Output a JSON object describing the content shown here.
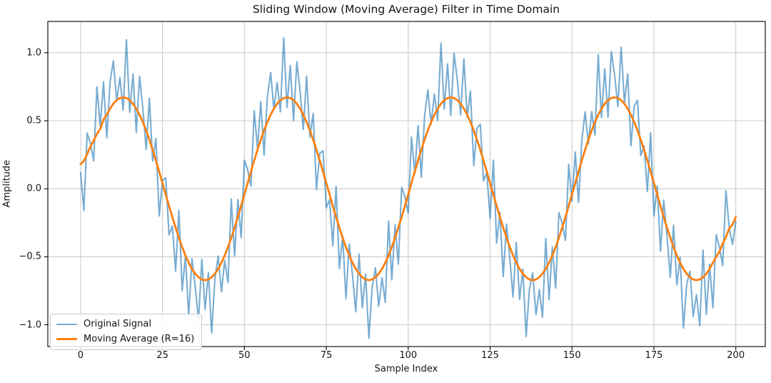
{
  "chart_data": {
    "type": "line",
    "title": "Sliding Window (Moving Average) Filter in Time Domain",
    "xlabel": "Sample Index",
    "ylabel": "Amplitude",
    "grid": true,
    "grid_color": "#cccccc",
    "background": "#ffffff",
    "legend_position": "lower left",
    "x_start": 0,
    "x_step": 1,
    "xlim": [
      -10,
      209
    ],
    "ylim": [
      -1.16,
      1.23
    ],
    "x_ticks": [
      0,
      25,
      50,
      75,
      100,
      125,
      150,
      175,
      200
    ],
    "x_tick_labels": [
      "0",
      "25",
      "50",
      "75",
      "100",
      "125",
      "150",
      "175",
      "200"
    ],
    "y_ticks": [
      -1.0,
      -0.5,
      0.0,
      0.5,
      1.0
    ],
    "y_tick_labels": [
      "−1.0",
      "−0.5",
      "0.0",
      "0.5",
      "1.0"
    ],
    "series": [
      {
        "name": "Original Signal",
        "color": "#1f77b4",
        "alpha": 0.6,
        "width": 2.1,
        "values": [
          0.12,
          -0.16,
          0.409,
          0.334,
          0.205,
          0.75,
          0.458,
          0.786,
          0.375,
          0.784,
          0.941,
          0.646,
          0.818,
          0.578,
          1.096,
          0.561,
          0.844,
          0.415,
          0.826,
          0.588,
          0.29,
          0.665,
          0.204,
          0.369,
          -0.2,
          0.06,
          0.08,
          -0.339,
          -0.274,
          -0.605,
          -0.16,
          -0.748,
          -0.496,
          -0.935,
          -0.514,
          -0.721,
          -0.966,
          -0.518,
          -0.888,
          -0.616,
          -1.061,
          -0.664,
          -0.495,
          -0.756,
          -0.528,
          -0.69,
          -0.075,
          -0.494,
          -0.079,
          -0.36,
          0.21,
          0.14,
          0.019,
          0.574,
          0.295,
          0.64,
          0.248,
          0.676,
          0.855,
          0.584,
          0.781,
          0.566,
          1.108,
          0.598,
          0.906,
          0.501,
          0.934,
          0.715,
          0.436,
          0.828,
          0.38,
          0.555,
          -0.006,
          0.259,
          0.28,
          -0.14,
          -0.08,
          -0.419,
          0.016,
          -0.585,
          -0.35,
          -0.808,
          -0.406,
          -0.635,
          -0.904,
          -0.481,
          -0.876,
          -0.628,
          -1.098,
          -0.726,
          -0.581,
          -0.864,
          -0.655,
          -0.836,
          -0.238,
          -0.67,
          -0.265,
          -0.554,
          0.011,
          -0.06,
          -0.18,
          0.38,
          0.109,
          0.464,
          0.085,
          0.53,
          0.728,
          0.476,
          0.695,
          0.504,
          1.071,
          0.586,
          0.918,
          0.538,
          0.996,
          0.801,
          0.544,
          0.955,
          0.526,
          0.718,
          0.17,
          0.445,
          0.474,
          0.059,
          0.12,
          -0.22,
          0.21,
          -0.399,
          -0.174,
          -0.645,
          -0.26,
          -0.508,
          -0.796,
          -0.395,
          -0.814,
          -0.591,
          -1.086,
          -0.738,
          -0.618,
          -0.926,
          -0.741,
          -0.944,
          -0.365,
          -0.816,
          -0.428,
          -0.73,
          -0.175,
          -0.254,
          -0.379,
          0.18,
          -0.09,
          0.27,
          -0.101,
          0.354,
          0.565,
          0.33,
          0.568,
          0.396,
          0.985,
          0.524,
          0.881,
          0.526,
          1.008,
          0.838,
          0.606,
          1.041,
          0.634,
          0.845,
          0.316,
          0.608,
          0.65,
          0.245,
          0.314,
          -0.021,
          0.41,
          -0.2,
          0.02,
          -0.459,
          -0.084,
          -0.345,
          -0.65,
          -0.268,
          -0.706,
          -0.505,
          -1.024,
          -0.701,
          -0.606,
          -0.938,
          -0.778,
          -1.006,
          -0.451,
          -0.924,
          -0.555,
          -0.876,
          -0.338,
          -0.43,
          -0.565,
          -0.014,
          -0.289,
          -0.41,
          -0.24
        ]
      },
      {
        "name": "Moving Average (R=16)",
        "color": "#ff7f0e",
        "alpha": 1.0,
        "width": 2.8,
        "values": [
          0.181,
          0.205,
          0.254,
          0.312,
          0.353,
          0.404,
          0.44,
          0.509,
          0.544,
          0.589,
          0.625,
          0.651,
          0.667,
          0.672,
          0.667,
          0.651,
          0.625,
          0.589,
          0.544,
          0.49,
          0.429,
          0.36,
          0.286,
          0.208,
          0.126,
          0.042,
          -0.042,
          -0.126,
          -0.208,
          -0.286,
          -0.36,
          -0.429,
          -0.49,
          -0.544,
          -0.589,
          -0.625,
          -0.651,
          -0.667,
          -0.672,
          -0.667,
          -0.651,
          -0.625,
          -0.589,
          -0.544,
          -0.49,
          -0.429,
          -0.36,
          -0.286,
          -0.208,
          -0.126,
          -0.042,
          0.042,
          0.126,
          0.208,
          0.286,
          0.36,
          0.429,
          0.49,
          0.544,
          0.589,
          0.625,
          0.651,
          0.667,
          0.672,
          0.667,
          0.651,
          0.625,
          0.589,
          0.544,
          0.49,
          0.429,
          0.36,
          0.286,
          0.208,
          0.126,
          0.042,
          -0.042,
          -0.126,
          -0.208,
          -0.286,
          -0.36,
          -0.429,
          -0.49,
          -0.544,
          -0.589,
          -0.625,
          -0.651,
          -0.667,
          -0.672,
          -0.667,
          -0.651,
          -0.625,
          -0.589,
          -0.544,
          -0.49,
          -0.429,
          -0.36,
          -0.286,
          -0.208,
          -0.126,
          -0.042,
          0.042,
          0.126,
          0.208,
          0.286,
          0.36,
          0.429,
          0.49,
          0.544,
          0.589,
          0.625,
          0.651,
          0.667,
          0.672,
          0.667,
          0.651,
          0.625,
          0.589,
          0.544,
          0.49,
          0.429,
          0.36,
          0.286,
          0.208,
          0.126,
          0.042,
          -0.042,
          -0.126,
          -0.208,
          -0.286,
          -0.36,
          -0.429,
          -0.49,
          -0.544,
          -0.589,
          -0.625,
          -0.651,
          -0.667,
          -0.672,
          -0.667,
          -0.651,
          -0.625,
          -0.589,
          -0.544,
          -0.49,
          -0.429,
          -0.36,
          -0.286,
          -0.208,
          -0.126,
          -0.042,
          0.042,
          0.126,
          0.208,
          0.286,
          0.36,
          0.429,
          0.49,
          0.544,
          0.589,
          0.625,
          0.651,
          0.667,
          0.672,
          0.667,
          0.651,
          0.625,
          0.589,
          0.544,
          0.49,
          0.429,
          0.36,
          0.286,
          0.208,
          0.126,
          0.042,
          -0.042,
          -0.126,
          -0.208,
          -0.286,
          -0.36,
          -0.429,
          -0.49,
          -0.544,
          -0.589,
          -0.625,
          -0.651,
          -0.667,
          -0.672,
          -0.667,
          -0.651,
          -0.625,
          -0.589,
          -0.544,
          -0.5,
          -0.462,
          -0.403,
          -0.355,
          -0.292,
          -0.264,
          -0.207
        ]
      }
    ]
  }
}
